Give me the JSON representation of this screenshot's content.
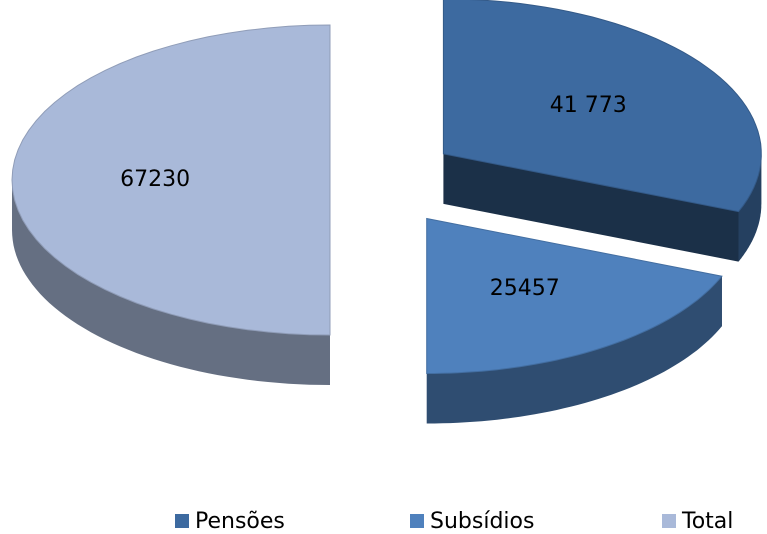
{
  "chart_data": {
    "type": "pie",
    "categories": [
      "Pensões",
      "Subsídios",
      "Total"
    ],
    "values": [
      41773,
      25457,
      67230
    ],
    "value_labels": [
      "41 773",
      "25457",
      "67230"
    ],
    "colors": [
      "#3d6aa0",
      "#4f81bd",
      "#a9b9d9"
    ],
    "legend": "bottom"
  }
}
